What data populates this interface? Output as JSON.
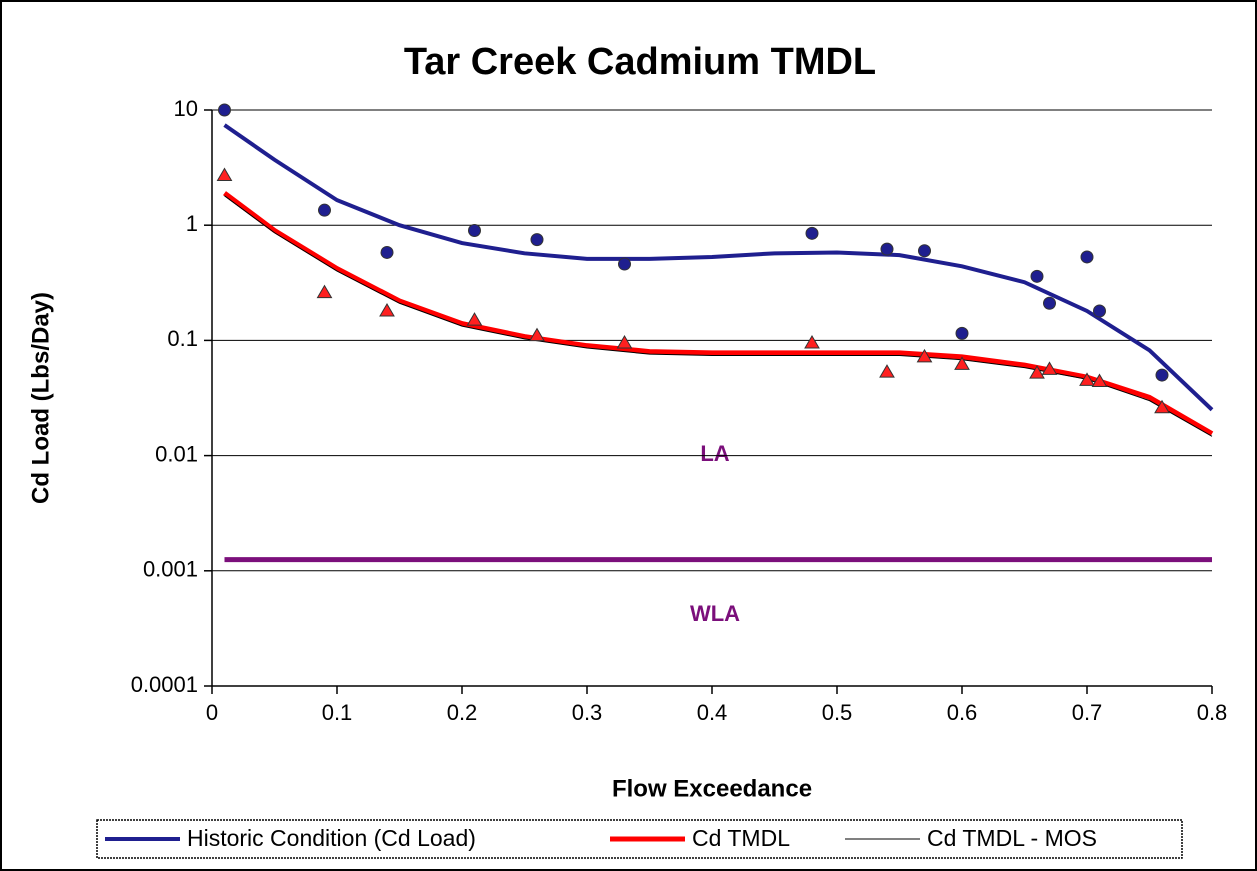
{
  "chart_data": {
    "type": "line",
    "title": "Tar Creek Cadmium TMDL",
    "x_label": "Flow Exceedance",
    "y_label": "Cd Load (Lbs/Day)",
    "annotations": [
      "LA",
      "WLA"
    ],
    "xlim": [
      0,
      0.8
    ],
    "xticks": [
      0,
      0.1,
      0.2,
      0.3,
      0.4,
      0.5,
      0.6,
      0.7,
      0.8
    ],
    "ylim": [
      0.0001,
      10
    ],
    "yticks": [
      0.0001,
      0.001,
      0.01,
      0.1,
      1,
      10
    ],
    "y_scale": "log",
    "grid": true,
    "legend": "bottom",
    "series": [
      {
        "name": "Historic Condition (Cd Load)",
        "color": "#1f1f8f",
        "width": 4,
        "x": [
          0.01,
          0.05,
          0.1,
          0.15,
          0.2,
          0.25,
          0.3,
          0.35,
          0.4,
          0.45,
          0.5,
          0.55,
          0.6,
          0.65,
          0.7,
          0.75,
          0.8
        ],
        "values": [
          7.4,
          3.7,
          1.65,
          1.0,
          0.7,
          0.57,
          0.51,
          0.51,
          0.53,
          0.57,
          0.58,
          0.55,
          0.44,
          0.32,
          0.18,
          0.082,
          0.025
        ]
      },
      {
        "name": "Cd TMDL",
        "color": "#ff0000",
        "width": 5,
        "x": [
          0.01,
          0.05,
          0.1,
          0.15,
          0.2,
          0.25,
          0.3,
          0.35,
          0.4,
          0.45,
          0.5,
          0.55,
          0.6,
          0.65,
          0.7,
          0.75,
          0.8
        ],
        "values": [
          1.9,
          0.9,
          0.42,
          0.22,
          0.14,
          0.108,
          0.09,
          0.08,
          0.078,
          0.078,
          0.078,
          0.078,
          0.072,
          0.061,
          0.048,
          0.032,
          0.0155
        ]
      },
      {
        "name": "Cd TMDL - MOS",
        "color": "#000000",
        "width": 1,
        "x": [
          0.01,
          0.05,
          0.1,
          0.15,
          0.2,
          0.25,
          0.3,
          0.35,
          0.4,
          0.45,
          0.5,
          0.55,
          0.6,
          0.65,
          0.7,
          0.75,
          0.8
        ],
        "values": [
          1.8,
          0.86,
          0.4,
          0.21,
          0.133,
          0.103,
          0.086,
          0.076,
          0.074,
          0.074,
          0.074,
          0.074,
          0.068,
          0.058,
          0.046,
          0.03,
          0.0147
        ]
      },
      {
        "color": "#7b0f7b",
        "width": 5,
        "x": [
          0.01,
          0.8
        ],
        "values": [
          0.00125,
          0.00125
        ]
      },
      {
        "color": "#1f1f8f",
        "marker": "circle",
        "x": [
          0.01,
          0.09,
          0.14,
          0.21,
          0.26,
          0.33,
          0.48,
          0.54,
          0.57,
          0.6,
          0.66,
          0.67,
          0.7,
          0.71,
          0.76
        ],
        "values": [
          10,
          1.35,
          0.58,
          0.9,
          0.75,
          0.46,
          0.85,
          0.62,
          0.6,
          0.115,
          0.36,
          0.21,
          0.53,
          0.18,
          0.05
        ]
      },
      {
        "color": "#ff2020",
        "marker": "triangle",
        "x": [
          0.01,
          0.09,
          0.14,
          0.21,
          0.26,
          0.33,
          0.48,
          0.54,
          0.57,
          0.6,
          0.66,
          0.67,
          0.7,
          0.71,
          0.76
        ],
        "values": [
          2.7,
          0.26,
          0.18,
          0.15,
          0.11,
          0.095,
          0.095,
          0.053,
          0.072,
          0.062,
          0.052,
          0.056,
          0.045,
          0.044,
          0.026
        ]
      }
    ]
  }
}
